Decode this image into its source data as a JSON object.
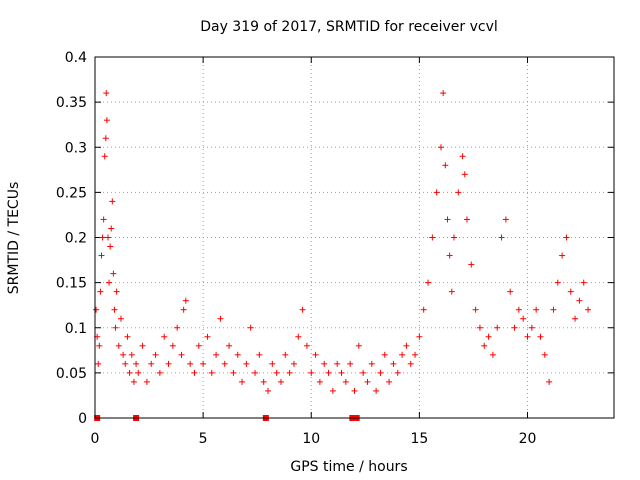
{
  "chart_data": {
    "type": "scatter",
    "title": "Day 319 of 2017, SRMTID for receiver vcvl",
    "xlabel": "GPS time / hours",
    "ylabel": "SRMTID / TECUs",
    "xlim": [
      0,
      24
    ],
    "ylim": [
      0,
      0.4
    ],
    "xticks": [
      0,
      5,
      10,
      15,
      20
    ],
    "xtick_labels": [
      "0",
      "5",
      "10",
      "15",
      "20"
    ],
    "yticks": [
      0,
      0.05,
      0.1,
      0.15,
      0.2,
      0.25,
      0.3,
      0.35,
      0.4
    ],
    "ytick_labels": [
      "0",
      "0.05",
      "0.1",
      "0.15",
      "0.2",
      "0.25",
      "0.3",
      "0.35",
      "0.4"
    ],
    "grid": true,
    "marker": "plus",
    "color": "#ff0000",
    "series": [
      {
        "name": "SRMTID",
        "points": [
          [
            0.05,
            0.12
          ],
          [
            0.1,
            0.09
          ],
          [
            0.15,
            0.06
          ],
          [
            0.2,
            0.08
          ],
          [
            0.25,
            0.14
          ],
          [
            0.3,
            0.18
          ],
          [
            0.35,
            0.2
          ],
          [
            0.4,
            0.22
          ],
          [
            0.45,
            0.29
          ],
          [
            0.5,
            0.31
          ],
          [
            0.52,
            0.36
          ],
          [
            0.55,
            0.33
          ],
          [
            0.6,
            0.2
          ],
          [
            0.65,
            0.15
          ],
          [
            0.7,
            0.19
          ],
          [
            0.75,
            0.21
          ],
          [
            0.8,
            0.24
          ],
          [
            0.85,
            0.16
          ],
          [
            0.9,
            0.12
          ],
          [
            0.95,
            0.1
          ],
          [
            1.0,
            0.14
          ],
          [
            1.1,
            0.08
          ],
          [
            1.2,
            0.11
          ],
          [
            1.3,
            0.07
          ],
          [
            1.4,
            0.06
          ],
          [
            1.5,
            0.09
          ],
          [
            1.6,
            0.05
          ],
          [
            1.7,
            0.07
          ],
          [
            1.8,
            0.04
          ],
          [
            1.9,
            0.06
          ],
          [
            2.0,
            0.05
          ],
          [
            2.2,
            0.08
          ],
          [
            2.4,
            0.04
          ],
          [
            2.6,
            0.06
          ],
          [
            2.8,
            0.07
          ],
          [
            3.0,
            0.05
          ],
          [
            3.2,
            0.09
          ],
          [
            3.4,
            0.06
          ],
          [
            3.6,
            0.08
          ],
          [
            3.8,
            0.1
          ],
          [
            4.0,
            0.07
          ],
          [
            4.1,
            0.12
          ],
          [
            4.2,
            0.13
          ],
          [
            4.4,
            0.06
          ],
          [
            4.6,
            0.05
          ],
          [
            4.8,
            0.08
          ],
          [
            5.0,
            0.06
          ],
          [
            5.2,
            0.09
          ],
          [
            5.4,
            0.05
          ],
          [
            5.6,
            0.07
          ],
          [
            5.8,
            0.11
          ],
          [
            6.0,
            0.06
          ],
          [
            6.2,
            0.08
          ],
          [
            6.4,
            0.05
          ],
          [
            6.6,
            0.07
          ],
          [
            6.8,
            0.04
          ],
          [
            7.0,
            0.06
          ],
          [
            7.2,
            0.1
          ],
          [
            7.4,
            0.05
          ],
          [
            7.6,
            0.07
          ],
          [
            7.8,
            0.04
          ],
          [
            8.0,
            0.03
          ],
          [
            8.2,
            0.06
          ],
          [
            8.4,
            0.05
          ],
          [
            8.6,
            0.04
          ],
          [
            8.8,
            0.07
          ],
          [
            9.0,
            0.05
          ],
          [
            9.2,
            0.06
          ],
          [
            9.4,
            0.09
          ],
          [
            9.6,
            0.12
          ],
          [
            9.8,
            0.08
          ],
          [
            10.0,
            0.05
          ],
          [
            10.2,
            0.07
          ],
          [
            10.4,
            0.04
          ],
          [
            10.6,
            0.06
          ],
          [
            10.8,
            0.05
          ],
          [
            11.0,
            0.03
          ],
          [
            11.2,
            0.06
          ],
          [
            11.4,
            0.05
          ],
          [
            11.6,
            0.04
          ],
          [
            11.8,
            0.06
          ],
          [
            12.0,
            0.03
          ],
          [
            12.2,
            0.08
          ],
          [
            12.4,
            0.05
          ],
          [
            12.6,
            0.04
          ],
          [
            12.8,
            0.06
          ],
          [
            13.0,
            0.03
          ],
          [
            13.2,
            0.05
          ],
          [
            13.4,
            0.07
          ],
          [
            13.6,
            0.04
          ],
          [
            13.8,
            0.06
          ],
          [
            14.0,
            0.05
          ],
          [
            14.2,
            0.07
          ],
          [
            14.4,
            0.08
          ],
          [
            14.6,
            0.06
          ],
          [
            14.8,
            0.07
          ],
          [
            15.0,
            0.09
          ],
          [
            15.2,
            0.12
          ],
          [
            15.4,
            0.15
          ],
          [
            15.6,
            0.2
          ],
          [
            15.8,
            0.25
          ],
          [
            16.0,
            0.3
          ],
          [
            16.1,
            0.36
          ],
          [
            16.2,
            0.28
          ],
          [
            16.3,
            0.22
          ],
          [
            16.4,
            0.18
          ],
          [
            16.5,
            0.14
          ],
          [
            16.6,
            0.2
          ],
          [
            16.8,
            0.25
          ],
          [
            17.0,
            0.29
          ],
          [
            17.1,
            0.27
          ],
          [
            17.2,
            0.22
          ],
          [
            17.4,
            0.17
          ],
          [
            17.6,
            0.12
          ],
          [
            17.8,
            0.1
          ],
          [
            18.0,
            0.08
          ],
          [
            18.2,
            0.09
          ],
          [
            18.4,
            0.07
          ],
          [
            18.6,
            0.1
          ],
          [
            18.8,
            0.2
          ],
          [
            19.0,
            0.22
          ],
          [
            19.2,
            0.14
          ],
          [
            19.4,
            0.1
          ],
          [
            19.6,
            0.12
          ],
          [
            19.8,
            0.11
          ],
          [
            20.0,
            0.09
          ],
          [
            20.2,
            0.1
          ],
          [
            20.4,
            0.12
          ],
          [
            20.6,
            0.09
          ],
          [
            20.8,
            0.07
          ],
          [
            21.0,
            0.04
          ],
          [
            21.2,
            0.12
          ],
          [
            21.4,
            0.15
          ],
          [
            21.6,
            0.18
          ],
          [
            21.8,
            0.2
          ],
          [
            22.0,
            0.14
          ],
          [
            22.2,
            0.11
          ],
          [
            22.4,
            0.13
          ],
          [
            22.6,
            0.15
          ],
          [
            22.8,
            0.12
          ]
        ]
      }
    ],
    "baseline_markers_x": [
      0.1,
      1.9,
      7.9,
      11.9,
      12.0,
      12.1
    ]
  }
}
